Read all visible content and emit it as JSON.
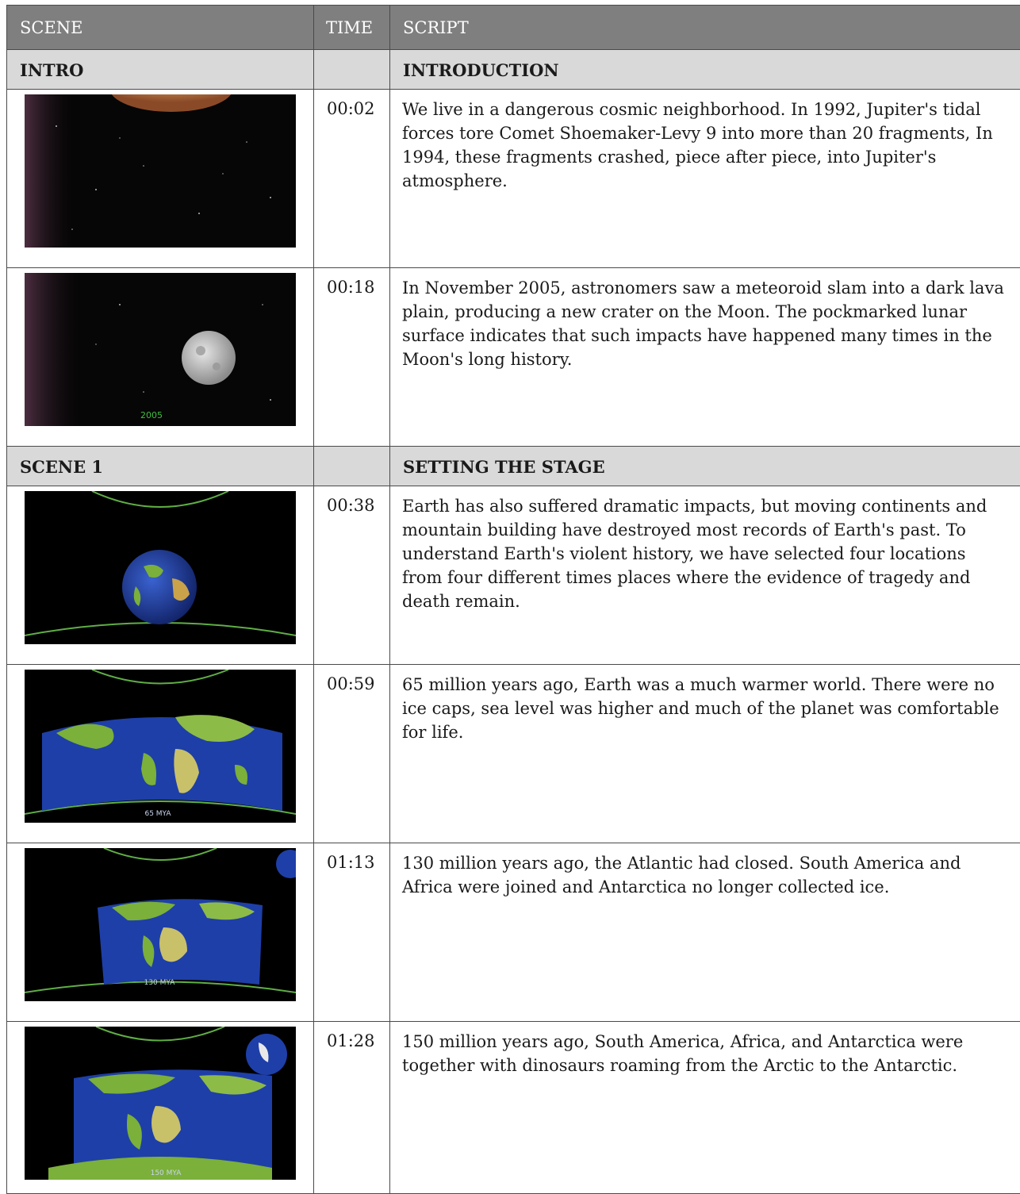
{
  "header": {
    "scene": "SCENE",
    "time": "TIME",
    "script": "SCRIPT"
  },
  "sections": [
    {
      "scene": "INTRO",
      "title": "INTRODUCTION",
      "rows": [
        {
          "time": "00:02",
          "thumb": "jupiter-comet-frame",
          "text": "We live in a dangerous cosmic neighborhood. In 1992, Jupiter's tidal forces tore Comet Shoemaker-Levy 9 into more than 20 fragments, In 1994, these fragments crashed, piece after piece, into Jupiter's atmosphere."
        },
        {
          "time": "00:18",
          "thumb": "moon-2005-frame",
          "caption": "2005",
          "text": "In November 2005, astronomers saw a meteoroid slam into a dark lava plain, producing a new crater on the Moon. The pockmarked lunar surface indicates that such impacts have happened many times in the Moon's long history."
        }
      ]
    },
    {
      "scene": "SCENE 1",
      "title": "SETTING THE STAGE",
      "rows": [
        {
          "time": "00:38",
          "thumb": "earth-globe-frame",
          "text": "Earth has also suffered dramatic impacts, but moving continents and mountain building have destroyed most records of Earth's past. To understand Earth's violent history, we have selected four locations from four different times places where the evidence of tragedy and death remain."
        },
        {
          "time": "00:59",
          "thumb": "map-65mya-frame",
          "caption": "65 MYA",
          "text": "65 million years ago, Earth was a much warmer world. There were no ice caps, sea level was higher and much of the planet was comfortable for life."
        },
        {
          "time": "01:13",
          "thumb": "map-130mya-frame",
          "caption": "130 MYA",
          "text": "130 million years ago, the Atlantic had closed. South America and Africa were joined and Antarctica no longer collected ice."
        },
        {
          "time": "01:28",
          "thumb": "map-150mya-frame",
          "caption": "150 MYA",
          "text": "150 million years ago, South America, Africa, and Antarctica were together with dinosaurs roaming from the Arctic to the Antarctic."
        }
      ]
    }
  ],
  "colors": {
    "header_bg": "#7f7f7f",
    "section_bg": "#d9d9d9",
    "ocean": "#1e3fa8",
    "land": "#7bb03a",
    "arc": "#5fae45"
  }
}
